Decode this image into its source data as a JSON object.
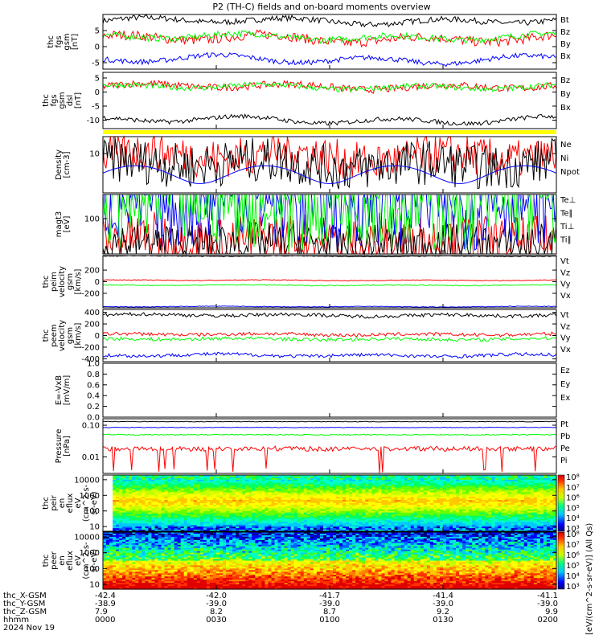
{
  "title": "P2 (TH-C) fields and on-board moments overview",
  "colors": {
    "black": "#000000",
    "red": "#ff0000",
    "green": "#00ff00",
    "blue": "#0000ff",
    "yellow": "#ffff00"
  },
  "chart_data": [
    {
      "type": "line",
      "id": "fgs",
      "ylabel": [
        "thc",
        "fgs",
        "gsm",
        "[nT]"
      ],
      "ylim": [
        -7,
        10
      ],
      "yticks": [
        5,
        0,
        -5
      ],
      "ytick_labels": [
        "5",
        "0",
        "-5"
      ],
      "series": [
        {
          "name": "Bt",
          "color": "#000000",
          "mean": 8,
          "noise": 0.9,
          "wave": 0.8
        },
        {
          "name": "Bz",
          "color": "#ff0000",
          "mean": 2.5,
          "noise": 1.5,
          "wave": 1.0
        },
        {
          "name": "By",
          "color": "#00ff00",
          "mean": 3,
          "noise": 1.0,
          "wave": 0.8
        },
        {
          "name": "Bx",
          "color": "#0000ff",
          "mean": -4,
          "noise": 0.8,
          "wave": 1.0
        }
      ]
    },
    {
      "type": "line",
      "id": "fgs-dsl",
      "ylabel": [
        "thc",
        "fgs",
        "gsm",
        "dsl",
        "[nT]"
      ],
      "ylim": [
        -13,
        7
      ],
      "yticks": [
        5,
        0,
        -5,
        -10
      ],
      "ytick_labels": [
        "5",
        "0",
        "-5",
        "-10"
      ],
      "series": [
        {
          "name": "Bz",
          "color": "#ff0000",
          "mean": 2,
          "noise": 1.3,
          "wave": 0.8
        },
        {
          "name": "By",
          "color": "#00ff00",
          "mean": 1.8,
          "noise": 1.0,
          "wave": 0.7
        },
        {
          "name": "Bx",
          "color": "#000000",
          "mean": -10,
          "noise": 0.8,
          "wave": 1.0
        }
      ]
    },
    {
      "type": "line",
      "id": "density",
      "ylabel": [
        "Density",
        "[cm-3]"
      ],
      "ylim": [
        2,
        20
      ],
      "log": true,
      "yticks": [
        10
      ],
      "ytick_labels": [
        "10"
      ],
      "series": [
        {
          "name": "Ne",
          "color": "#ff0000",
          "mean": 9,
          "noise": 0.7,
          "wave": 2.5
        },
        {
          "name": "Ni",
          "color": "#000000",
          "mean": 6.5,
          "noise": 0.8,
          "wave": 2.0
        },
        {
          "name": "Npot",
          "color": "#0000ff",
          "mean": 4.5,
          "noise": 0.0,
          "wave": 1.5
        }
      ]
    },
    {
      "type": "line",
      "id": "temperature",
      "ylabel": [
        "magt3",
        "[eV]"
      ],
      "ylim": [
        20,
        300
      ],
      "log": true,
      "yticks": [
        100
      ],
      "ytick_labels": [
        "100"
      ],
      "series": [
        {
          "name": "Te⊥",
          "color": "#ff0000",
          "mean": 38,
          "noise": 1.0,
          "wave": 1.5
        },
        {
          "name": "Te∥",
          "color": "#000000",
          "mean": 32,
          "noise": 0.8,
          "wave": 0.8
        },
        {
          "name": "Ti⊥",
          "color": "#0000ff",
          "mean": 270,
          "noise": 2.0,
          "wave": 2.0
        },
        {
          "name": "Ti∥",
          "color": "#00ff00",
          "mean": 245,
          "noise": 2.0,
          "wave": 2.0
        }
      ]
    },
    {
      "type": "line",
      "id": "peim-velocity",
      "ylabel": [
        "thc",
        "peim",
        "velocity",
        "gsm",
        "[km/s]"
      ],
      "ylim": [
        -450,
        450
      ],
      "yticks": [
        200,
        0,
        -200
      ],
      "ytick_labels": [
        "200",
        "0",
        "-200"
      ],
      "series": [
        {
          "name": "Vt",
          "color": "#000000",
          "mean": 440,
          "noise": 6,
          "wave": 5
        },
        {
          "name": "Vz",
          "color": "#ff0000",
          "mean": 25,
          "noise": 6,
          "wave": 5
        },
        {
          "name": "Vy",
          "color": "#00ff00",
          "mean": -60,
          "noise": 8,
          "wave": 5
        },
        {
          "name": "Vx",
          "color": "#0000ff",
          "mean": -430,
          "noise": 6,
          "wave": 5
        }
      ]
    },
    {
      "type": "line",
      "id": "peem-velocity",
      "ylabel": [
        "thc",
        "peem",
        "velocity",
        "gsm",
        "[km/s]"
      ],
      "ylim": [
        -450,
        450
      ],
      "yticks": [
        400,
        200,
        0,
        -200,
        -400
      ],
      "ytick_labels": [
        "400",
        "200",
        "0",
        "-200",
        "-400"
      ],
      "series": [
        {
          "name": "Vt",
          "color": "#000000",
          "mean": 350,
          "noise": 30,
          "wave": 15
        },
        {
          "name": "Vz",
          "color": "#ff0000",
          "mean": 20,
          "noise": 30,
          "wave": 10
        },
        {
          "name": "Vy",
          "color": "#00ff00",
          "mean": -60,
          "noise": 30,
          "wave": 10
        },
        {
          "name": "Vx",
          "color": "#0000ff",
          "mean": -340,
          "noise": 30,
          "wave": 15
        }
      ]
    },
    {
      "type": "line",
      "id": "efield",
      "ylabel": [
        "E=-VxB",
        "[mV/m]"
      ],
      "ylim": [
        0,
        1.0
      ],
      "yticks": [
        1.0,
        0.8,
        0.6,
        0.4,
        0.2,
        0.0
      ],
      "ytick_labels": [
        "1.0",
        "0.8",
        "0.6",
        "0.4",
        "0.2",
        "0.0"
      ],
      "series": [
        {
          "name": "Ez",
          "color": "#ff0000"
        },
        {
          "name": "Ey",
          "color": "#00ff00"
        },
        {
          "name": "Ex",
          "color": "#0000ff"
        }
      ]
    },
    {
      "type": "line",
      "id": "pressure",
      "ylabel": [
        "Pressure",
        "[nPa]"
      ],
      "ylim": [
        0.003,
        0.16
      ],
      "log": true,
      "yticks": [
        0.1,
        0.01
      ],
      "ytick_labels": [
        "0.10",
        "0.01"
      ],
      "series": [
        {
          "name": "Pt",
          "color": "#000000",
          "mean": 0.13,
          "noise": 0.02,
          "wave": 0.05
        },
        {
          "name": "Pb",
          "color": "#ff0000",
          "mean": 0.018,
          "noise": 0.15,
          "wave": 0.25,
          "dips": true
        },
        {
          "name": "Pe",
          "color": "#00ff00",
          "mean": 0.05,
          "noise": 0.03,
          "wave": 0.05
        },
        {
          "name": "Pi",
          "color": "#0000ff",
          "mean": 0.085,
          "noise": 0.02,
          "wave": 0.04
        }
      ]
    },
    {
      "type": "heatmap",
      "id": "peir-spec",
      "ylabel": [
        "thc",
        "peir",
        "en",
        "eflux",
        "eV",
        "(cm^2-s-",
        "sr-eV)"
      ],
      "ylim": [
        5,
        20000
      ],
      "log": true,
      "yticks": [
        10000,
        1000,
        100,
        10
      ],
      "ytick_labels": [
        "10000",
        "1000",
        "100",
        "10"
      ]
    },
    {
      "type": "heatmap",
      "id": "peer-spec",
      "ylabel": [
        "thc",
        "peer",
        "en",
        "eflux",
        "eV",
        "(cm^2-s-",
        "sr-eV)"
      ],
      "ylim": [
        5,
        20000
      ],
      "log": true,
      "yticks": [
        10000,
        1000,
        100,
        10
      ],
      "ytick_labels": [
        "10000",
        "1000",
        "100",
        "10"
      ]
    }
  ],
  "colorbar": {
    "upper_labels": [
      "10⁸",
      "10⁷",
      "10⁶",
      "10⁵",
      "10⁴",
      "10³"
    ],
    "lower_labels": [
      "10⁸",
      "10⁷",
      "10⁶",
      "10⁵",
      "10⁴",
      "10³"
    ],
    "unit_label": "[eV/(cm^2-s-sr-eV)] (All Qs)"
  },
  "xaxis": {
    "row_labels": [
      "thc_X-GSM",
      "thc_Y-GSM",
      "thc_Z-GSM",
      "hhmm",
      "2024 Nov 19"
    ],
    "ticks": [
      {
        "values": [
          "-42.4",
          "-38.9",
          "7.9",
          "0000"
        ]
      },
      {
        "values": [
          "-42.0",
          "-39.0",
          "8.2",
          "0030"
        ]
      },
      {
        "values": [
          "-41.7",
          "-39.0",
          "8.7",
          "0100"
        ]
      },
      {
        "values": [
          "-41.4",
          "-39.0",
          "9.2",
          "0130"
        ]
      },
      {
        "values": [
          "-41.1",
          "-39.0",
          "9.9",
          "0200"
        ]
      }
    ]
  }
}
